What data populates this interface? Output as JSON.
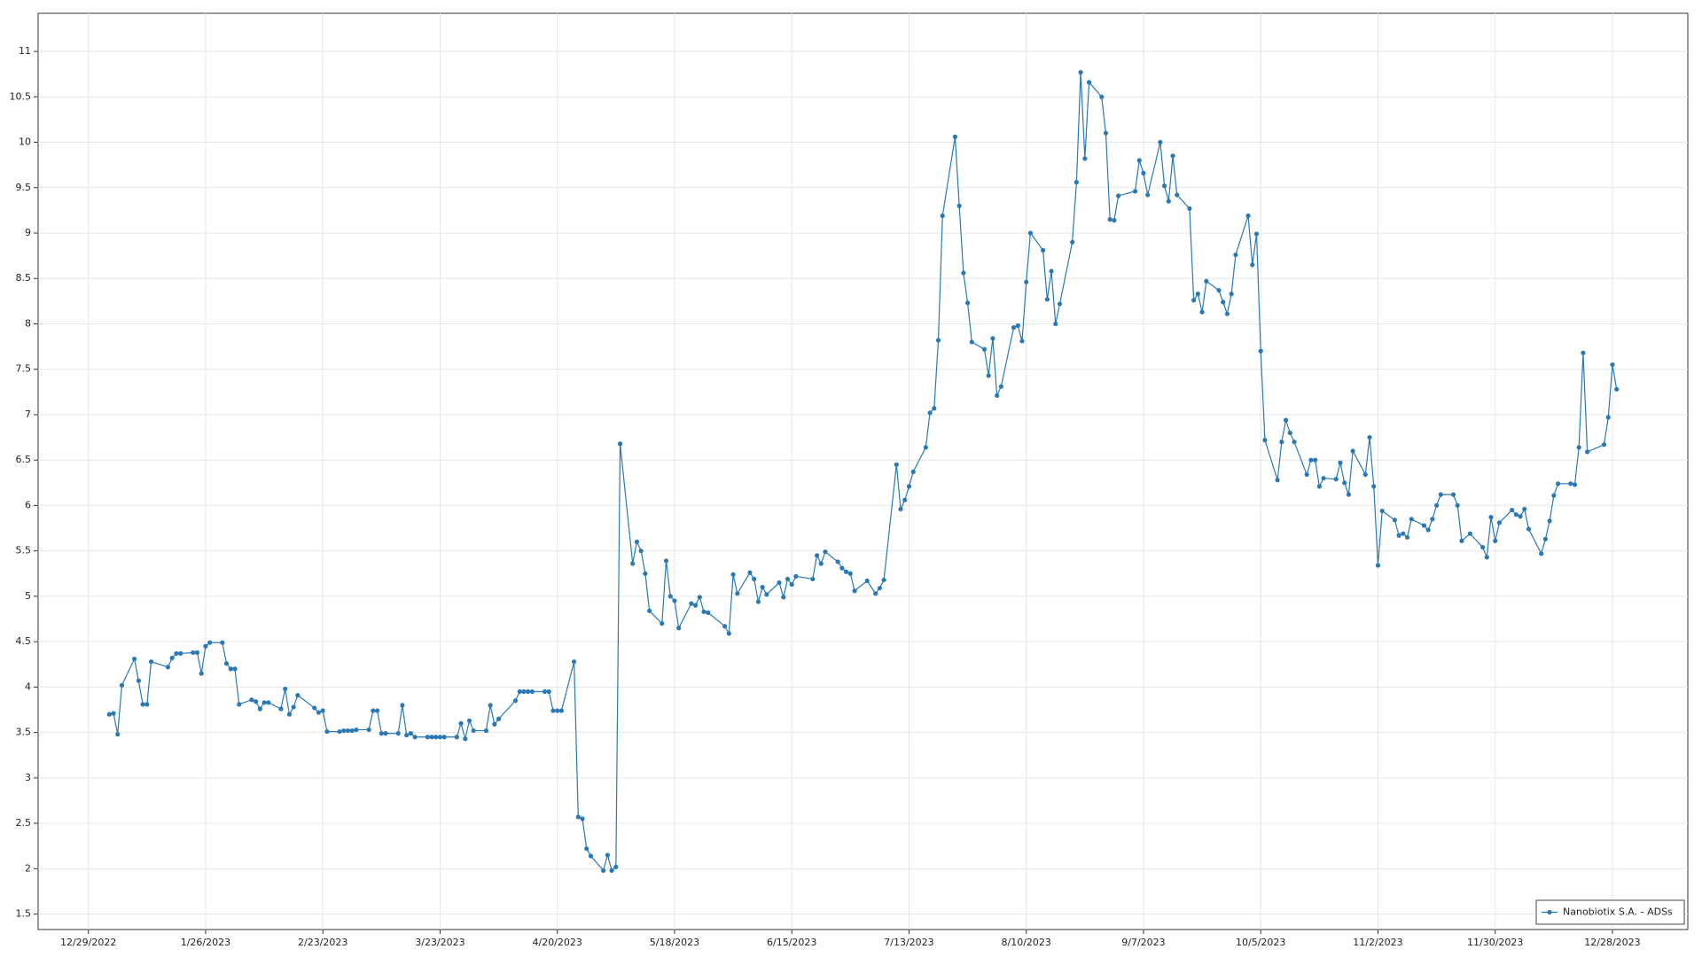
{
  "chart_data": {
    "type": "line",
    "x": [
      "1/3/2023",
      "1/4/2023",
      "1/5/2023",
      "1/6/2023",
      "1/9/2023",
      "1/10/2023",
      "1/11/2023",
      "1/12/2023",
      "1/13/2023",
      "1/17/2023",
      "1/18/2023",
      "1/19/2023",
      "1/20/2023",
      "1/23/2023",
      "1/24/2023",
      "1/25/2023",
      "1/26/2023",
      "1/27/2023",
      "1/30/2023",
      "1/31/2023",
      "2/1/2023",
      "2/2/2023",
      "2/3/2023",
      "2/6/2023",
      "2/7/2023",
      "2/8/2023",
      "2/9/2023",
      "2/10/2023",
      "2/13/2023",
      "2/14/2023",
      "2/15/2023",
      "2/16/2023",
      "2/17/2023",
      "2/21/2023",
      "2/22/2023",
      "2/23/2023",
      "2/24/2023",
      "2/27/2023",
      "2/28/2023",
      "3/1/2023",
      "3/2/2023",
      "3/3/2023",
      "3/6/2023",
      "3/7/2023",
      "3/8/2023",
      "3/9/2023",
      "3/10/2023",
      "3/13/2023",
      "3/14/2023",
      "3/15/2023",
      "3/16/2023",
      "3/17/2023",
      "3/20/2023",
      "3/21/2023",
      "3/22/2023",
      "3/23/2023",
      "3/24/2023",
      "3/27/2023",
      "3/28/2023",
      "3/29/2023",
      "3/30/2023",
      "3/31/2023",
      "4/3/2023",
      "4/4/2023",
      "4/5/2023",
      "4/6/2023",
      "4/10/2023",
      "4/11/2023",
      "4/12/2023",
      "4/13/2023",
      "4/14/2023",
      "4/17/2023",
      "4/18/2023",
      "4/19/2023",
      "4/20/2023",
      "4/21/2023",
      "4/24/2023",
      "4/25/2023",
      "4/26/2023",
      "4/27/2023",
      "4/28/2023",
      "5/1/2023",
      "5/2/2023",
      "5/3/2023",
      "5/4/2023",
      "5/5/2023",
      "5/8/2023",
      "5/9/2023",
      "5/10/2023",
      "5/11/2023",
      "5/12/2023",
      "5/15/2023",
      "5/16/2023",
      "5/17/2023",
      "5/18/2023",
      "5/19/2023",
      "5/22/2023",
      "5/23/2023",
      "5/24/2023",
      "5/25/2023",
      "5/26/2023",
      "5/30/2023",
      "5/31/2023",
      "6/1/2023",
      "6/2/2023",
      "6/5/2023",
      "6/6/2023",
      "6/7/2023",
      "6/8/2023",
      "6/9/2023",
      "6/12/2023",
      "6/13/2023",
      "6/14/2023",
      "6/15/2023",
      "6/16/2023",
      "6/20/2023",
      "6/21/2023",
      "6/22/2023",
      "6/23/2023",
      "6/26/2023",
      "6/27/2023",
      "6/28/2023",
      "6/29/2023",
      "6/30/2023",
      "7/3/2023",
      "7/5/2023",
      "7/6/2023",
      "7/7/2023",
      "7/10/2023",
      "7/11/2023",
      "7/12/2023",
      "7/13/2023",
      "7/14/2023",
      "7/17/2023",
      "7/18/2023",
      "7/19/2023",
      "7/20/2023",
      "7/21/2023",
      "7/24/2023",
      "7/25/2023",
      "7/26/2023",
      "7/27/2023",
      "7/28/2023",
      "7/31/2023",
      "8/1/2023",
      "8/2/2023",
      "8/3/2023",
      "8/4/2023",
      "8/7/2023",
      "8/8/2023",
      "8/9/2023",
      "8/10/2023",
      "8/11/2023",
      "8/14/2023",
      "8/15/2023",
      "8/16/2023",
      "8/17/2023",
      "8/18/2023",
      "8/21/2023",
      "8/22/2023",
      "8/23/2023",
      "8/24/2023",
      "8/25/2023",
      "8/28/2023",
      "8/29/2023",
      "8/30/2023",
      "8/31/2023",
      "9/1/2023",
      "9/5/2023",
      "9/6/2023",
      "9/7/2023",
      "9/8/2023",
      "9/11/2023",
      "9/12/2023",
      "9/13/2023",
      "9/14/2023",
      "9/15/2023",
      "9/18/2023",
      "9/19/2023",
      "9/20/2023",
      "9/21/2023",
      "9/22/2023",
      "9/25/2023",
      "9/26/2023",
      "9/27/2023",
      "9/28/2023",
      "9/29/2023",
      "10/2/2023",
      "10/3/2023",
      "10/4/2023",
      "10/5/2023",
      "10/6/2023",
      "10/9/2023",
      "10/10/2023",
      "10/11/2023",
      "10/12/2023",
      "10/13/2023",
      "10/16/2023",
      "10/17/2023",
      "10/18/2023",
      "10/19/2023",
      "10/20/2023",
      "10/23/2023",
      "10/24/2023",
      "10/25/2023",
      "10/26/2023",
      "10/27/2023",
      "10/30/2023",
      "10/31/2023",
      "11/1/2023",
      "11/2/2023",
      "11/3/2023",
      "11/6/2023",
      "11/7/2023",
      "11/8/2023",
      "11/9/2023",
      "11/10/2023",
      "11/13/2023",
      "11/14/2023",
      "11/15/2023",
      "11/16/2023",
      "11/17/2023",
      "11/20/2023",
      "11/21/2023",
      "11/22/2023",
      "11/24/2023",
      "11/27/2023",
      "11/28/2023",
      "11/29/2023",
      "11/30/2023",
      "12/1/2023",
      "12/4/2023",
      "12/5/2023",
      "12/6/2023",
      "12/7/2023",
      "12/8/2023",
      "12/11/2023",
      "12/12/2023",
      "12/13/2023",
      "12/14/2023",
      "12/15/2023",
      "12/18/2023",
      "12/19/2023",
      "12/20/2023",
      "12/21/2023",
      "12/22/2023",
      "12/26/2023",
      "12/27/2023",
      "12/28/2023",
      "12/29/2023"
    ],
    "series": [
      {
        "name": "Nanobiotix S.A. - ADSs",
        "color": "#2a78b4",
        "values": [
          3.7,
          3.71,
          3.48,
          4.02,
          4.31,
          4.07,
          3.81,
          3.81,
          4.28,
          4.22,
          4.32,
          4.37,
          4.37,
          4.38,
          4.38,
          4.15,
          4.45,
          4.49,
          4.49,
          4.26,
          4.2,
          4.2,
          3.81,
          3.86,
          3.84,
          3.76,
          3.83,
          3.83,
          3.76,
          3.98,
          3.7,
          3.78,
          3.91,
          3.77,
          3.72,
          3.74,
          3.51,
          3.51,
          3.52,
          3.52,
          3.52,
          3.53,
          3.53,
          3.74,
          3.74,
          3.49,
          3.49,
          3.49,
          3.8,
          3.47,
          3.49,
          3.45,
          3.45,
          3.45,
          3.45,
          3.45,
          3.45,
          3.45,
          3.6,
          3.43,
          3.63,
          3.52,
          3.52,
          3.8,
          3.59,
          3.65,
          3.85,
          3.95,
          3.95,
          3.95,
          3.95,
          3.95,
          3.95,
          3.74,
          3.74,
          3.74,
          4.28,
          2.57,
          2.55,
          2.22,
          2.14,
          1.98,
          2.15,
          1.98,
          2.02,
          6.68,
          5.36,
          5.6,
          5.5,
          5.25,
          4.84,
          4.7,
          5.39,
          5.0,
          4.95,
          4.65,
          4.92,
          4.9,
          4.99,
          4.83,
          4.82,
          4.67,
          4.59,
          5.24,
          5.03,
          5.26,
          5.19,
          4.94,
          5.1,
          5.02,
          5.15,
          4.99,
          5.19,
          5.13,
          5.22,
          5.19,
          5.45,
          5.36,
          5.49,
          5.38,
          5.31,
          5.27,
          5.25,
          5.06,
          5.17,
          5.03,
          5.09,
          5.18,
          6.45,
          5.96,
          6.06,
          6.21,
          6.37,
          6.64,
          7.02,
          7.07,
          7.82,
          9.19,
          10.06,
          9.3,
          8.56,
          8.23,
          7.8,
          7.72,
          7.43,
          7.84,
          7.21,
          7.31,
          7.96,
          7.98,
          7.81,
          8.46,
          9.0,
          8.81,
          8.27,
          8.58,
          8.0,
          8.22,
          8.9,
          9.56,
          10.77,
          9.82,
          10.66,
          10.5,
          10.1,
          9.15,
          9.14,
          9.41,
          9.46,
          9.8,
          9.66,
          9.42,
          10.0,
          9.52,
          9.35,
          9.85,
          9.42,
          9.27,
          8.26,
          8.33,
          8.13,
          8.47,
          8.37,
          8.24,
          8.11,
          8.33,
          8.76,
          9.19,
          8.65,
          8.99,
          7.7,
          6.72,
          6.28,
          6.7,
          6.94,
          6.8,
          6.7,
          6.34,
          6.5,
          6.5,
          6.21,
          6.3,
          6.29,
          6.47,
          6.25,
          6.12,
          6.6,
          6.34,
          6.75,
          6.21,
          5.34,
          5.94,
          5.84,
          5.67,
          5.69,
          5.65,
          5.85,
          5.78,
          5.73,
          5.85,
          6.0,
          6.12,
          6.12,
          6.0,
          5.61,
          5.69,
          5.54,
          5.43,
          5.87,
          5.61,
          5.81,
          5.95,
          5.9,
          5.88,
          5.96,
          5.74,
          5.47,
          5.63,
          5.83,
          6.11,
          6.24,
          6.24,
          6.23,
          6.64,
          7.68,
          6.59,
          6.67,
          6.97,
          7.55,
          7.28
        ]
      }
    ],
    "xlim": [
      "12/17/2022",
      "1/15/2024"
    ],
    "xticks": [
      "12/29/2022",
      "1/26/2023",
      "2/23/2023",
      "3/23/2023",
      "4/20/2023",
      "5/18/2023",
      "6/15/2023",
      "7/13/2023",
      "8/10/2023",
      "9/7/2023",
      "10/5/2023",
      "11/2/2023",
      "11/30/2023",
      "12/28/2023"
    ],
    "ylim": [
      1.33,
      11.42
    ],
    "yticks": [
      1.5,
      2,
      2.5,
      3,
      3.5,
      4,
      4.5,
      5,
      5.5,
      6,
      6.5,
      7,
      7.5,
      8,
      8.5,
      9,
      9.5,
      10,
      10.5,
      11
    ],
    "grid": true,
    "legend": "lower right"
  }
}
